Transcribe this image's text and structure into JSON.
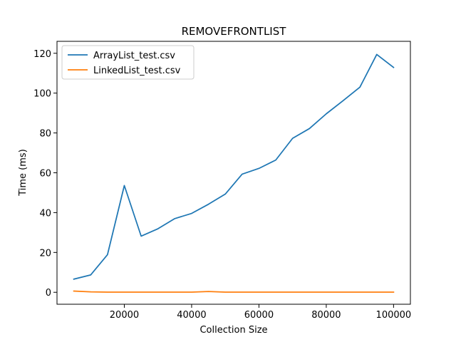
{
  "chart_data": {
    "type": "line",
    "title": "REMOVEFRONTLIST",
    "xlabel": "Collection Size",
    "ylabel": "Time (ms)",
    "xlim": [
      0,
      105000
    ],
    "ylim": [
      -6,
      126
    ],
    "xticks": [
      20000,
      40000,
      60000,
      80000,
      100000
    ],
    "yticks": [
      0,
      20,
      40,
      60,
      80,
      100,
      120
    ],
    "grid": false,
    "legend_position": "upper-left",
    "x": [
      5000,
      10000,
      15000,
      20000,
      25000,
      30000,
      35000,
      40000,
      45000,
      50000,
      55000,
      60000,
      65000,
      70000,
      75000,
      80000,
      85000,
      90000,
      95000,
      100000
    ],
    "series": [
      {
        "name": "ArrayList_test.csv",
        "color": "#1f77b4",
        "values": [
          6.6,
          8.7,
          18.9,
          53.6,
          28.2,
          31.9,
          37.0,
          39.6,
          44.2,
          49.3,
          59.3,
          62.2,
          66.4,
          77.3,
          82.2,
          89.6,
          96.2,
          103.0,
          119.4,
          112.9
        ]
      },
      {
        "name": "LinkedList_test.csv",
        "color": "#ff7f0e",
        "values": [
          0.6,
          0.2,
          0.1,
          0.1,
          0.1,
          0.1,
          0.1,
          0.1,
          0.4,
          0.1,
          0.1,
          0.1,
          0.1,
          0.1,
          0.1,
          0.1,
          0.1,
          0.1,
          0.1,
          0.1
        ]
      }
    ]
  }
}
